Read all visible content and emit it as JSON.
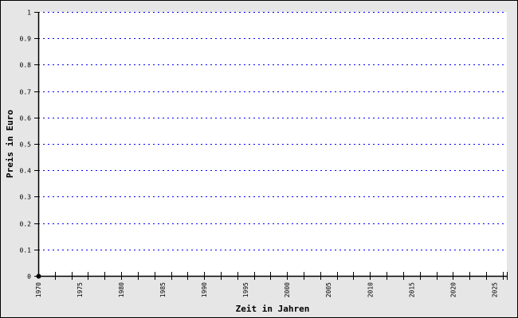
{
  "chart_data": {
    "type": "line",
    "title": "",
    "xlabel": "Zeit in Jahren",
    "ylabel": "Preis in Euro",
    "xlim": [
      1970,
      2026.5
    ],
    "ylim": [
      0,
      1
    ],
    "x_tick_labels": [
      "1970",
      "1975",
      "1980",
      "1985",
      "1990",
      "1995",
      "2000",
      "2005",
      "2010",
      "2015",
      "2020",
      "2025"
    ],
    "y_tick_labels": [
      "0",
      "0.1",
      "0.2",
      "0.3",
      "0.4",
      "0.5",
      "0.6",
      "0.7",
      "0.8",
      "0.9",
      "1"
    ],
    "grid": true,
    "grid_color": "#0000ff",
    "series": [
      {
        "x": [
          1970
        ],
        "y": [
          0
        ],
        "color": "#000000"
      }
    ]
  }
}
